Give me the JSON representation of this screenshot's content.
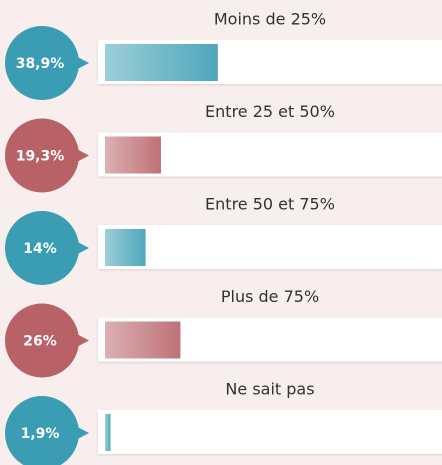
{
  "chart_data": {
    "type": "bar",
    "categories": [
      "Moins de 25%",
      "Entre 25 et 50%",
      "Entre 50 et 75%",
      "Plus de 75%",
      "Ne sait pas"
    ],
    "values": [
      38.9,
      19.3,
      14,
      26,
      1.9
    ],
    "value_labels": [
      "38,9%",
      "19,3%",
      "14%",
      "26%",
      "1,9%"
    ],
    "colors": [
      "#3a9db3",
      "#b86268",
      "#3a9db3",
      "#b86268",
      "#3a9db3"
    ],
    "xlim": [
      0,
      100
    ]
  }
}
